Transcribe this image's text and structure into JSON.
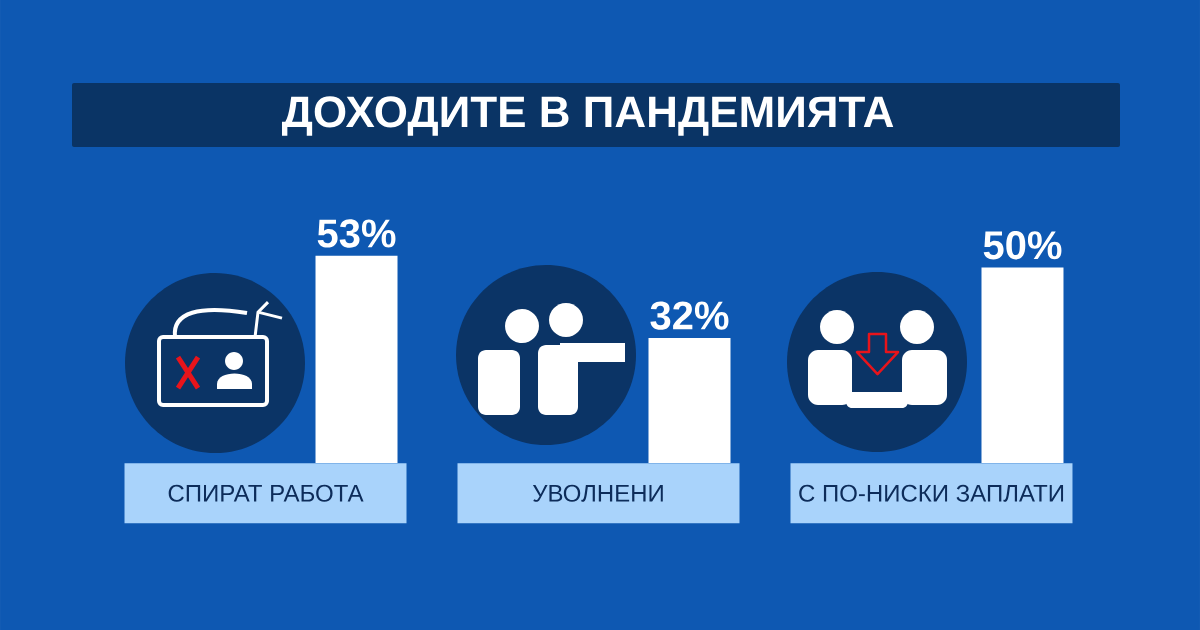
{
  "chart_data": {
    "type": "bar",
    "title": "ДОХОДИТЕ В ПАНДЕМИЯТА",
    "categories": [
      "СПИРАТ РАБОТА",
      "УВОЛНЕНИ",
      "С ПО-НИСКИ ЗАПЛАТИ"
    ],
    "values": [
      53,
      32,
      50
    ],
    "value_labels": [
      "53%",
      "32%",
      "50%"
    ],
    "color": "#ffffff"
  }
}
